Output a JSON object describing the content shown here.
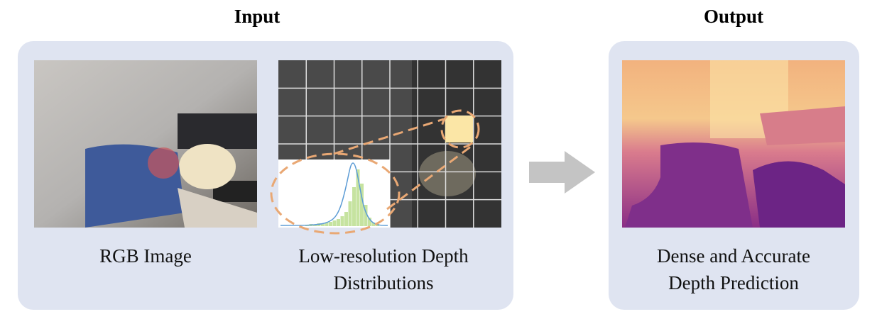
{
  "input": {
    "title": "Input",
    "rgb_label": "RGB Image",
    "depth_label": [
      "Low-resolution Depth",
      "Distributions"
    ]
  },
  "output": {
    "title": "Output",
    "label": [
      "Dense and Accurate",
      "Depth Prediction"
    ]
  }
}
